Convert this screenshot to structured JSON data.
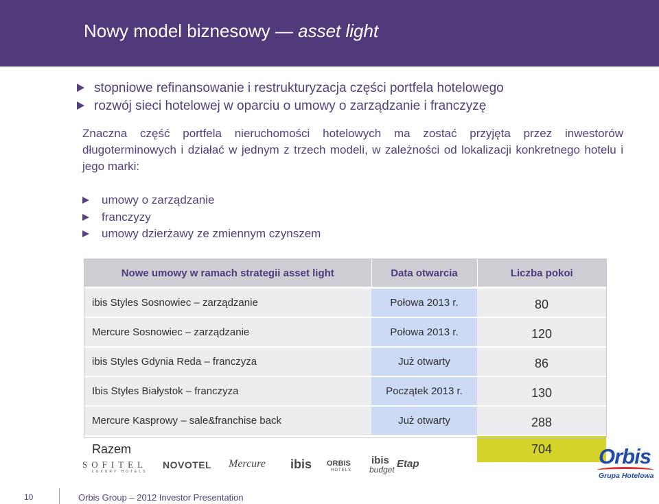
{
  "title": {
    "main": "Nowy model biznesowy —",
    "italic": "asset light"
  },
  "bullets_main": [
    "stopniowe refinansowanie i restrukturyzacja części portfela hotelowego",
    "rozwój sieci hotelowej w oparciu o umowy o zarządzanie i franczyzę"
  ],
  "paragraph": "Znaczna część portfela nieruchomości hotelowych ma zostać przyjęta przez inwestorów długoterminowych i działać w jednym z trzech modeli, w zależności od lokalizacji konkretnego hotelu i jego marki:",
  "bullets_models": [
    "umowy o zarządzanie",
    "franczyzy",
    "umowy dzierżawy ze zmiennym czynszem"
  ],
  "table": {
    "headers": [
      "Nowe umowy w ramach strategii asset light",
      "Data otwarcia",
      "Liczba pokoi"
    ],
    "rows": [
      {
        "name": "ibis Styles Sosnowiec – zarządzanie",
        "date": "Połowa 2013 r.",
        "rooms": "80"
      },
      {
        "name": "Mercure Sosnowiec – zarządzanie",
        "date": "Połowa 2013 r.",
        "rooms": "120"
      },
      {
        "name": "ibis Styles Gdynia Reda – franczyza",
        "date": "Już otwarty",
        "rooms": "86"
      },
      {
        "name": "Ibis Styles Białystok – franczyza",
        "date": "Początek 2013 r.",
        "rooms": "130"
      },
      {
        "name": "Mercure Kasprowy – sale&franchise back",
        "date": "Już otwarty",
        "rooms": "288"
      }
    ],
    "total": {
      "label": "Razem",
      "rooms": "704"
    }
  },
  "brands": {
    "sofitel": "SOFITEL",
    "sofitel_sub": "LUXURY HOTELS",
    "novotel": "NOVOTEL",
    "mercure": "Mercure",
    "ibis": "ibis",
    "orbis_hotels": "ORBIS",
    "orbis_hotels_sub": "HOTELS",
    "ibis_budget_1": "ibis",
    "ibis_budget_2": "budget",
    "etap": "Etap"
  },
  "orbis_logo": {
    "word": "Orbis",
    "sub": "Grupa Hotelowa"
  },
  "footer": {
    "page": "10",
    "text": "Orbis Group – 2012 Investor Presentation"
  },
  "colors": {
    "header_bg": "#503a7c",
    "text": "#53407c",
    "total_highlight": "#d4d32a",
    "date_col": "#ccdaf6"
  }
}
